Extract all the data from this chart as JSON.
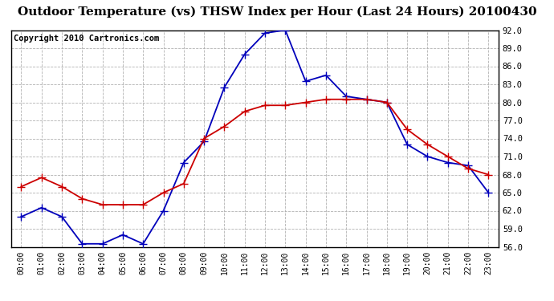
{
  "title": "Outdoor Temperature (vs) THSW Index per Hour (Last 24 Hours) 20100430",
  "copyright": "Copyright 2010 Cartronics.com",
  "hours": [
    "00:00",
    "01:00",
    "02:00",
    "03:00",
    "04:00",
    "05:00",
    "06:00",
    "07:00",
    "08:00",
    "09:00",
    "10:00",
    "11:00",
    "12:00",
    "13:00",
    "14:00",
    "15:00",
    "16:00",
    "17:00",
    "18:00",
    "19:00",
    "20:00",
    "21:00",
    "22:00",
    "23:00"
  ],
  "thsw": [
    61.0,
    62.5,
    61.0,
    56.5,
    56.5,
    58.0,
    56.5,
    62.0,
    70.0,
    73.5,
    82.5,
    88.0,
    91.5,
    92.0,
    83.5,
    84.5,
    81.0,
    80.5,
    80.0,
    73.0,
    71.0,
    70.0,
    69.5,
    65.0
  ],
  "temp": [
    66.0,
    67.5,
    66.0,
    64.0,
    63.0,
    63.0,
    63.0,
    65.0,
    66.5,
    74.0,
    76.0,
    78.5,
    79.5,
    79.5,
    80.0,
    80.5,
    80.5,
    80.5,
    80.0,
    75.5,
    73.0,
    71.0,
    69.0,
    68.0
  ],
  "ylim": [
    56.0,
    92.0
  ],
  "yticks": [
    56.0,
    59.0,
    62.0,
    65.0,
    68.0,
    71.0,
    74.0,
    77.0,
    80.0,
    83.0,
    86.0,
    89.0,
    92.0
  ],
  "thsw_color": "#0000bb",
  "temp_color": "#cc0000",
  "bg_color": "#ffffff",
  "grid_color": "#aaaaaa",
  "title_fontsize": 11,
  "copyright_fontsize": 7.5,
  "marker": "+",
  "markersize": 7,
  "linewidth": 1.3
}
